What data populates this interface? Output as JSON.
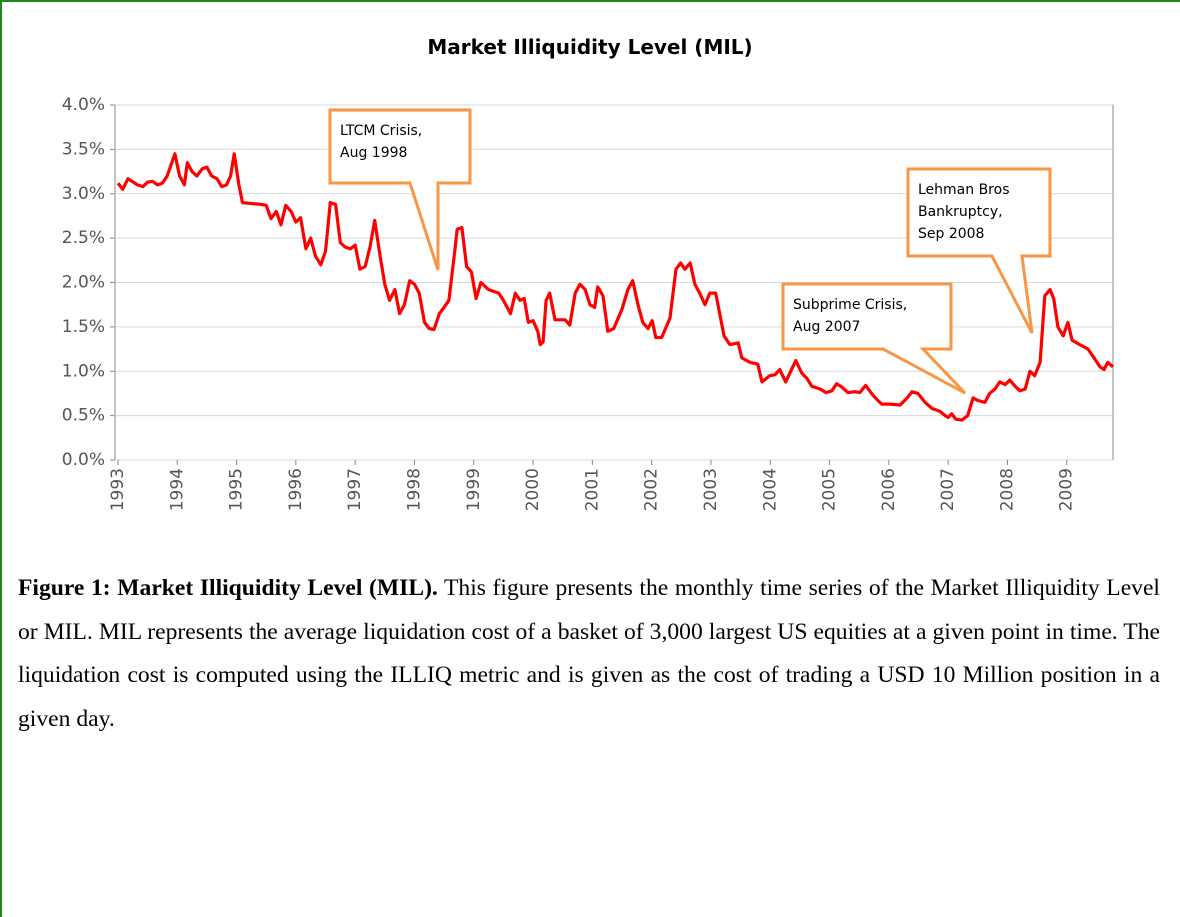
{
  "chart_data": {
    "type": "line",
    "title": "Market Illiquidity Level (MIL)",
    "color": "#ff0000",
    "xlim": [
      1992.95,
      2009.78
    ],
    "xticks": [
      1993,
      1994,
      1995,
      1996,
      1997,
      1998,
      1999,
      2000,
      2001,
      2002,
      2003,
      2004,
      2005,
      2006,
      2007,
      2008,
      2009
    ],
    "ylim": [
      0,
      4
    ],
    "yticks": [
      {
        "value": 0,
        "label": "0.0%"
      },
      {
        "value": 0.5,
        "label": "0.5%"
      },
      {
        "value": 1,
        "label": "1.0%"
      },
      {
        "value": 1.5,
        "label": "1.5%"
      },
      {
        "value": 2,
        "label": "2.0%"
      },
      {
        "value": 2.5,
        "label": "2.5%"
      },
      {
        "value": 3,
        "label": "3.0%"
      },
      {
        "value": 3.5,
        "label": "3.5%"
      },
      {
        "value": 4,
        "label": "4.0%"
      }
    ],
    "grid": true,
    "x": [
      1993.0,
      1993.08,
      1993.17,
      1993.33,
      1993.42,
      1993.5,
      1993.58,
      1993.67,
      1993.75,
      1993.83,
      1993.96,
      1994.04,
      1994.12,
      1994.17,
      1994.25,
      1994.33,
      1994.42,
      1994.5,
      1994.58,
      1994.67,
      1994.75,
      1994.83,
      1994.9,
      1994.96,
      1995.04,
      1995.1,
      1995.25,
      1995.42,
      1995.5,
      1995.58,
      1995.67,
      1995.75,
      1995.83,
      1995.92,
      1996.0,
      1996.08,
      1996.17,
      1996.25,
      1996.33,
      1996.42,
      1996.5,
      1996.58,
      1996.67,
      1996.75,
      1996.83,
      1996.92,
      1997.0,
      1997.08,
      1997.17,
      1997.25,
      1997.33,
      1997.42,
      1997.5,
      1997.58,
      1997.67,
      1997.75,
      1997.83,
      1997.92,
      1998.0,
      1998.08,
      1998.17,
      1998.25,
      1998.33,
      1998.42,
      1998.5,
      1998.58,
      1998.67,
      1998.72,
      1998.8,
      1998.88,
      1998.96,
      1999.04,
      1999.12,
      1999.25,
      1999.42,
      1999.5,
      1999.62,
      1999.7,
      1999.78,
      1999.85,
      1999.92,
      2000.0,
      2000.08,
      2000.12,
      2000.17,
      2000.22,
      2000.28,
      2000.37,
      2000.54,
      2000.62,
      2000.71,
      2000.79,
      2000.88,
      2000.96,
      2001.04,
      2001.09,
      2001.18,
      2001.26,
      2001.36,
      2001.5,
      2001.6,
      2001.68,
      2001.77,
      2001.85,
      2001.94,
      2002.01,
      2002.07,
      2002.17,
      2002.31,
      2002.41,
      2002.49,
      2002.56,
      2002.65,
      2002.73,
      2002.81,
      2002.9,
      2002.98,
      2003.08,
      2003.22,
      2003.32,
      2003.46,
      2003.52,
      2003.66,
      2003.79,
      2003.86,
      2003.99,
      2004.08,
      2004.16,
      2004.26,
      2004.43,
      2004.53,
      2004.62,
      2004.7,
      2004.84,
      2004.94,
      2005.04,
      2005.12,
      2005.21,
      2005.31,
      2005.43,
      2005.51,
      2005.61,
      2005.72,
      2005.8,
      2005.88,
      2006.02,
      2006.19,
      2006.31,
      2006.39,
      2006.49,
      2006.61,
      2006.73,
      2006.86,
      2006.95,
      2007.0,
      2007.06,
      2007.13,
      2007.23,
      2007.33,
      2007.42,
      2007.5,
      2007.62,
      2007.7,
      2007.79,
      2007.87,
      2007.96,
      2008.04,
      2008.13,
      2008.21,
      2008.3,
      2008.38,
      2008.46,
      2008.55,
      2008.63,
      2008.72,
      2008.78,
      2008.85,
      2008.94,
      2009.02,
      2009.09,
      2009.22,
      2009.36,
      2009.46,
      2009.56,
      2009.63,
      2009.69,
      2009.78
    ],
    "values": [
      3.12,
      3.05,
      3.17,
      3.1,
      3.08,
      3.13,
      3.14,
      3.1,
      3.12,
      3.2,
      3.45,
      3.2,
      3.1,
      3.35,
      3.25,
      3.2,
      3.28,
      3.3,
      3.2,
      3.17,
      3.08,
      3.1,
      3.2,
      3.45,
      3.1,
      2.9,
      2.89,
      2.88,
      2.87,
      2.72,
      2.8,
      2.65,
      2.87,
      2.8,
      2.68,
      2.73,
      2.38,
      2.5,
      2.3,
      2.2,
      2.35,
      2.9,
      2.88,
      2.45,
      2.4,
      2.38,
      2.42,
      2.15,
      2.18,
      2.4,
      2.7,
      2.3,
      1.98,
      1.8,
      1.92,
      1.65,
      1.75,
      2.02,
      1.98,
      1.88,
      1.55,
      1.48,
      1.47,
      1.65,
      1.72,
      1.8,
      2.3,
      2.6,
      2.62,
      2.18,
      2.12,
      1.82,
      2.0,
      1.92,
      1.88,
      1.8,
      1.65,
      1.88,
      1.8,
      1.82,
      1.55,
      1.57,
      1.45,
      1.3,
      1.33,
      1.8,
      1.88,
      1.58,
      1.58,
      1.52,
      1.88,
      1.98,
      1.92,
      1.75,
      1.72,
      1.95,
      1.85,
      1.45,
      1.48,
      1.7,
      1.92,
      2.02,
      1.75,
      1.55,
      1.48,
      1.57,
      1.38,
      1.38,
      1.6,
      2.15,
      2.22,
      2.15,
      2.22,
      1.98,
      1.88,
      1.75,
      1.88,
      1.88,
      1.4,
      1.3,
      1.32,
      1.15,
      1.1,
      1.08,
      0.88,
      0.95,
      0.96,
      1.02,
      0.88,
      1.12,
      0.98,
      0.92,
      0.83,
      0.8,
      0.76,
      0.78,
      0.86,
      0.82,
      0.76,
      0.77,
      0.76,
      0.84,
      0.74,
      0.68,
      0.63,
      0.63,
      0.62,
      0.7,
      0.77,
      0.75,
      0.65,
      0.58,
      0.55,
      0.5,
      0.48,
      0.52,
      0.46,
      0.45,
      0.5,
      0.7,
      0.67,
      0.65,
      0.75,
      0.8,
      0.88,
      0.85,
      0.9,
      0.83,
      0.78,
      0.8,
      1.0,
      0.95,
      1.1,
      1.85,
      1.92,
      1.82,
      1.5,
      1.4,
      1.55,
      1.35,
      1.3,
      1.25,
      1.15,
      1.05,
      1.02,
      1.1,
      1.05
    ],
    "annotations": [
      {
        "lines": [
          "LTCM Crisis,",
          "Aug 1998"
        ]
      },
      {
        "lines": [
          "Subprime Crisis,",
          "Aug 2007"
        ]
      },
      {
        "lines": [
          "Lehman Bros",
          "Bankruptcy,",
          "Sep 2008"
        ]
      }
    ]
  },
  "caption": {
    "label": "Figure 1: Market Illiquidity Level (MIL).",
    "text": "This figure presents the monthly time series of the Market Illiquidity Level or MIL. MIL represents the average liquidation cost of a basket of 3,000 largest US equities at a given point in time.  The liquidation cost is computed using the ILLIQ metric and is given as the cost of trading a USD 10 Million position in a given day."
  }
}
